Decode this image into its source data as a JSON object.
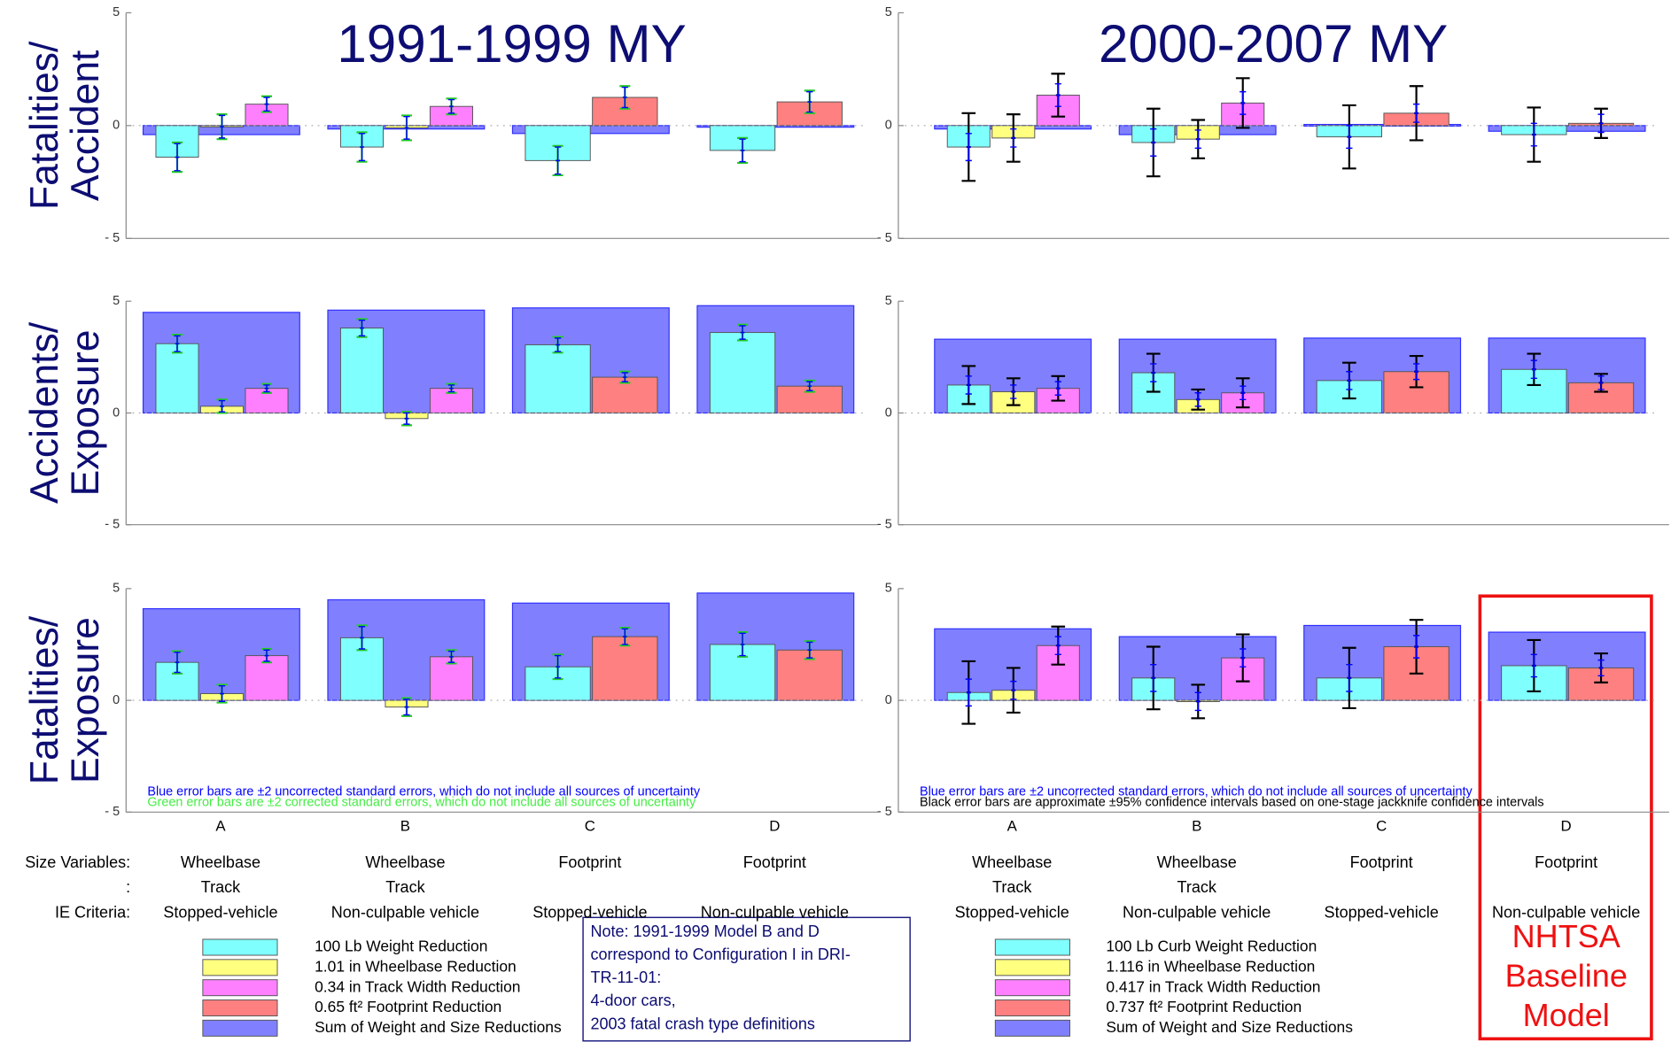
{
  "chart_data": [
    {
      "type": "bar",
      "title": "1991-1999 MY",
      "categories": [
        "A",
        "B",
        "C",
        "D"
      ],
      "ylim": [
        -5,
        5
      ],
      "yticks": [
        {
          "value": -5,
          "label": "- 5"
        },
        0,
        5
      ],
      "legend": [
        {
          "name": "100 Lb Weight Reduction",
          "color": "#80ffff"
        },
        {
          "name": "1.01 in Wheelbase Reduction",
          "color": "#ffff80"
        },
        {
          "name": "0.34 in Track Width Reduction",
          "color": "#ff80ff"
        },
        {
          "name": "0.65 ft² Footprint Reduction",
          "color": "#ff8080"
        },
        {
          "name": "Sum of Weight and Size Reductions",
          "color": "#8080ff"
        }
      ],
      "error_colors": [
        "#0000ff",
        "#22cc22"
      ],
      "footnotes": [
        "Blue error bars are ±2 uncorrected standard errors, which do not include all sources of uncertainty",
        "Green error bars are ±2 corrected standard errors, which do not include all sources of uncertainty"
      ],
      "size_variables": [
        [
          "Wheelbase",
          "Wheelbase",
          "Footprint",
          "Footprint"
        ],
        [
          "Track",
          "Track",
          null,
          null
        ],
        [
          "Stopped-vehicle",
          "Non-culpable vehicle",
          "Stopped-vehicle",
          "Non-culpable vehicle"
        ]
      ],
      "panels": [
        {
          "ylabel": [
            "Fatalities/",
            "Accident"
          ],
          "series": [
            {
              "values": [
                -1.4,
                -0.95,
                -1.55,
                -1.1
              ],
              "errors": [
                0.6,
                0.6,
                0.6,
                0.5
              ],
              "errors2": [
                0.65,
                0.65,
                0.65,
                0.55
              ]
            },
            {
              "values": [
                -0.05,
                -0.1,
                null,
                null
              ],
              "errors": [
                0.5,
                0.5,
                null,
                null
              ],
              "errors2": [
                0.55,
                0.55,
                null,
                null
              ]
            },
            {
              "values": [
                0.95,
                0.85,
                null,
                null
              ],
              "errors": [
                0.3,
                0.3,
                null,
                null
              ],
              "errors2": [
                0.35,
                0.35,
                null,
                null
              ]
            },
            {
              "values": [
                null,
                null,
                1.25,
                1.05
              ],
              "errors": [
                null,
                null,
                0.45,
                0.45
              ],
              "errors2": [
                null,
                null,
                0.5,
                0.5
              ]
            },
            {
              "values": [
                -0.4,
                -0.15,
                -0.35,
                -0.05
              ]
            }
          ]
        },
        {
          "ylabel": [
            "Accidents/",
            "Exposure"
          ],
          "series": [
            {
              "values": [
                3.1,
                3.8,
                3.05,
                3.6
              ],
              "errors": [
                0.35,
                0.35,
                0.3,
                0.3
              ],
              "errors2": [
                0.4,
                0.4,
                0.35,
                0.35
              ]
            },
            {
              "values": [
                0.3,
                -0.25,
                null,
                null
              ],
              "errors": [
                0.25,
                0.25,
                null,
                null
              ],
              "errors2": [
                0.3,
                0.3,
                null,
                null
              ]
            },
            {
              "values": [
                1.1,
                1.1,
                null,
                null
              ],
              "errors": [
                0.15,
                0.15,
                null,
                null
              ],
              "errors2": [
                0.2,
                0.2,
                null,
                null
              ]
            },
            {
              "values": [
                null,
                null,
                1.6,
                1.2
              ],
              "errors": [
                null,
                null,
                0.2,
                0.2
              ],
              "errors2": [
                null,
                null,
                0.25,
                0.25
              ]
            },
            {
              "values": [
                4.5,
                4.6,
                4.7,
                4.8
              ]
            }
          ]
        },
        {
          "ylabel": [
            "Fatalities/",
            "Exposure"
          ],
          "series": [
            {
              "values": [
                1.7,
                2.8,
                1.5,
                2.5
              ],
              "errors": [
                0.45,
                0.5,
                0.5,
                0.5
              ],
              "errors2": [
                0.5,
                0.55,
                0.55,
                0.55
              ]
            },
            {
              "values": [
                0.3,
                -0.3,
                null,
                null
              ],
              "errors": [
                0.35,
                0.35,
                null,
                null
              ],
              "errors2": [
                0.4,
                0.4,
                null,
                null
              ]
            },
            {
              "values": [
                2.0,
                1.95,
                null,
                null
              ],
              "errors": [
                0.25,
                0.25,
                null,
                null
              ],
              "errors2": [
                0.3,
                0.3,
                null,
                null
              ]
            },
            {
              "values": [
                null,
                null,
                2.85,
                2.25
              ],
              "errors": [
                null,
                null,
                0.35,
                0.35
              ],
              "errors2": [
                null,
                null,
                0.4,
                0.4
              ]
            },
            {
              "values": [
                4.1,
                4.5,
                4.35,
                4.8
              ]
            }
          ]
        }
      ]
    },
    {
      "type": "bar",
      "title": "2000-2007 MY",
      "categories": [
        "A",
        "B",
        "C",
        "D"
      ],
      "ylim": [
        -5,
        5
      ],
      "yticks": [
        {
          "value": -5,
          "label": "- 5"
        },
        0,
        5
      ],
      "legend": [
        {
          "name": "100 Lb Curb Weight Reduction",
          "color": "#80ffff"
        },
        {
          "name": "1.116 in Wheelbase Reduction",
          "color": "#ffff80"
        },
        {
          "name": "0.417 in Track Width Reduction",
          "color": "#ff80ff"
        },
        {
          "name": "0.737 ft² Footprint Reduction",
          "color": "#ff8080"
        },
        {
          "name": "Sum of Weight and Size Reductions",
          "color": "#8080ff"
        }
      ],
      "error_colors": [
        "#0000ff",
        "#000000"
      ],
      "footnotes": [
        "Blue error bars are ±2 uncorrected standard errors, which do not include all sources of uncertainty",
        "Black error bars are approximate ±95% confidence intervals based on one-stage jackknife confidence intervals"
      ],
      "size_variables": [
        [
          "Wheelbase",
          "Wheelbase",
          "Footprint",
          "Footprint"
        ],
        [
          "Track",
          "Track",
          null,
          null
        ],
        [
          "Stopped-vehicle",
          "Non-culpable vehicle",
          "Stopped-vehicle",
          "Non-culpable vehicle"
        ]
      ],
      "panels": [
        {
          "series": [
            {
              "values": [
                -0.95,
                -0.75,
                -0.5,
                -0.4
              ],
              "errors": [
                0.6,
                0.6,
                0.5,
                0.5
              ],
              "errors2": [
                1.5,
                1.5,
                1.4,
                1.2
              ]
            },
            {
              "values": [
                -0.55,
                -0.6,
                null,
                null
              ],
              "errors": [
                0.4,
                0.4,
                null,
                null
              ],
              "errors2": [
                1.05,
                0.85,
                null,
                null
              ]
            },
            {
              "values": [
                1.35,
                1.0,
                null,
                null
              ],
              "errors": [
                0.5,
                0.5,
                null,
                null
              ],
              "errors2": [
                0.95,
                1.1,
                null,
                null
              ]
            },
            {
              "values": [
                null,
                null,
                0.55,
                0.1
              ],
              "errors": [
                null,
                null,
                0.4,
                0.4
              ],
              "errors2": [
                null,
                null,
                1.2,
                0.65
              ]
            },
            {
              "values": [
                -0.15,
                -0.4,
                0.05,
                -0.25
              ]
            }
          ]
        },
        {
          "series": [
            {
              "values": [
                1.25,
                1.8,
                1.45,
                1.95
              ],
              "errors": [
                0.4,
                0.4,
                0.4,
                0.4
              ],
              "errors2": [
                0.85,
                0.85,
                0.8,
                0.7
              ]
            },
            {
              "values": [
                0.95,
                0.6,
                null,
                null
              ],
              "errors": [
                0.3,
                0.3,
                null,
                null
              ],
              "errors2": [
                0.6,
                0.45,
                null,
                null
              ]
            },
            {
              "values": [
                1.1,
                0.9,
                null,
                null
              ],
              "errors": [
                0.3,
                0.3,
                null,
                null
              ],
              "errors2": [
                0.55,
                0.65,
                null,
                null
              ]
            },
            {
              "values": [
                null,
                null,
                1.85,
                1.35
              ],
              "errors": [
                null,
                null,
                0.35,
                0.3
              ],
              "errors2": [
                null,
                null,
                0.7,
                0.4
              ]
            },
            {
              "values": [
                3.3,
                3.3,
                3.35,
                3.35
              ]
            }
          ]
        },
        {
          "series": [
            {
              "values": [
                0.35,
                1.0,
                1.0,
                1.55
              ],
              "errors": [
                0.6,
                0.6,
                0.6,
                0.5
              ],
              "errors2": [
                1.4,
                1.4,
                1.35,
                1.15
              ]
            },
            {
              "values": [
                0.45,
                -0.05,
                null,
                null
              ],
              "errors": [
                0.4,
                0.4,
                null,
                null
              ],
              "errors2": [
                1.0,
                0.75,
                null,
                null
              ]
            },
            {
              "values": [
                2.45,
                1.9,
                null,
                null
              ],
              "errors": [
                0.4,
                0.4,
                null,
                null
              ],
              "errors2": [
                0.85,
                1.05,
                null,
                null
              ]
            },
            {
              "values": [
                null,
                null,
                2.4,
                1.45
              ],
              "errors": [
                null,
                null,
                0.5,
                0.35
              ],
              "errors2": [
                null,
                null,
                1.2,
                0.65
              ]
            },
            {
              "values": [
                3.2,
                2.85,
                3.35,
                3.05
              ]
            }
          ]
        }
      ]
    }
  ],
  "table_row_labels": [
    "Size Variables:",
    ":",
    "IE Criteria:"
  ],
  "note": [
    "Note: 1991-1999 Model B and D",
    "correspond to Configuration I in DRI-",
    "TR-11-01:",
    "4-door cars,",
    "2003 fatal crash type definitions"
  ],
  "highlight": [
    "NHTSA",
    "Baseline",
    "Model"
  ]
}
